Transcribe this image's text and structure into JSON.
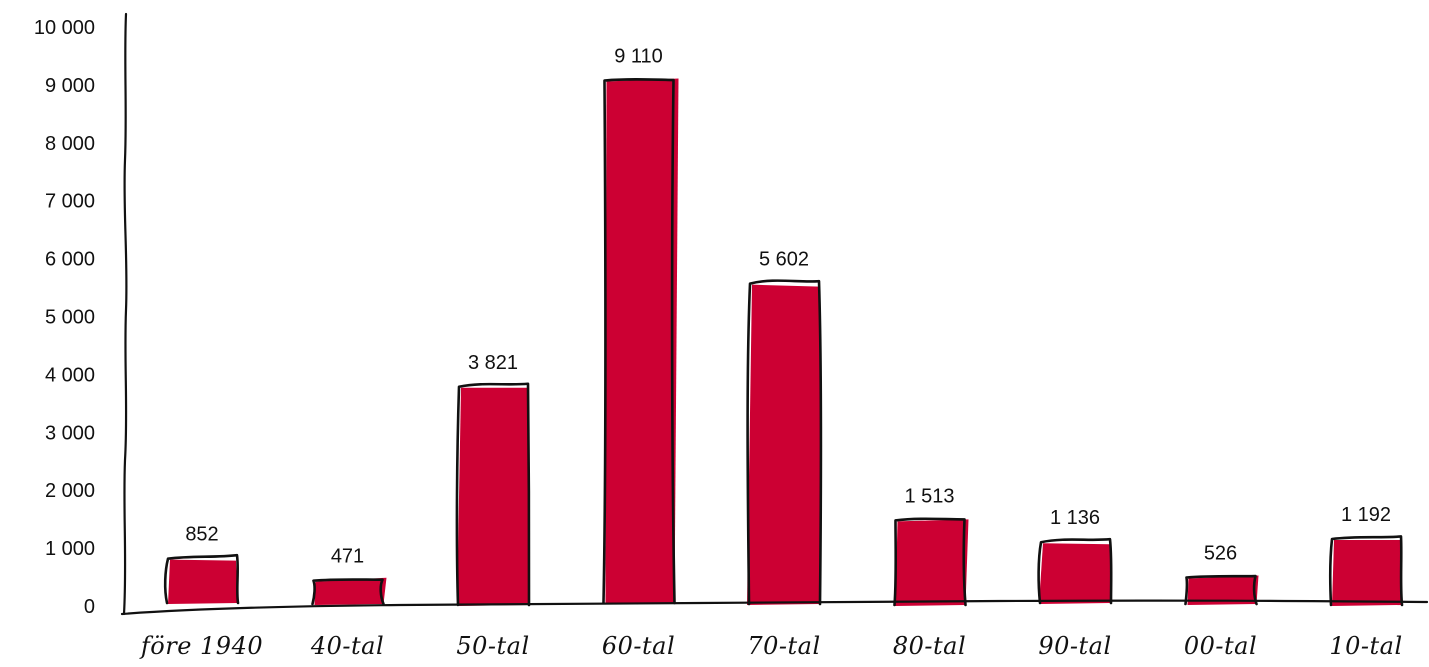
{
  "chart_data": {
    "type": "bar",
    "title": "",
    "xlabel": "",
    "ylabel": "",
    "categories": [
      "före 1940",
      "40-tal",
      "50-tal",
      "60-tal",
      "70-tal",
      "80-tal",
      "90-tal",
      "00-tal",
      "10-tal"
    ],
    "values": [
      852,
      471,
      3821,
      9110,
      5602,
      1513,
      1136,
      526,
      1192
    ],
    "value_labels": [
      "852",
      "471",
      "3 821",
      "9 110",
      "5 602",
      "1 513",
      "1 136",
      "526",
      "1 192"
    ],
    "ylim": [
      0,
      10000
    ],
    "y_ticks": [
      0,
      1000,
      2000,
      3000,
      4000,
      5000,
      6000,
      7000,
      8000,
      9000,
      10000
    ],
    "y_tick_labels": [
      "0",
      "1 000",
      "2 000",
      "3 000",
      "4 000",
      "5 000",
      "6 000",
      "7 000",
      "8 000",
      "9 000",
      "10 000"
    ],
    "grid": false,
    "legend": "none",
    "bar_color": "#cc0033",
    "outline_color": "#111111",
    "style": "hand-drawn"
  }
}
